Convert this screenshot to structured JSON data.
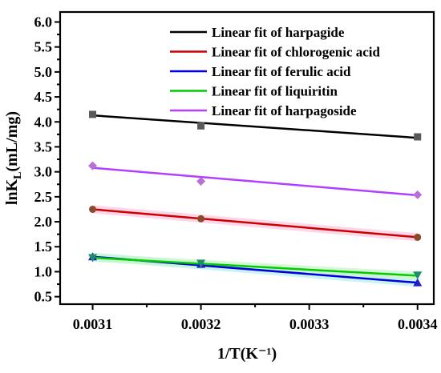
{
  "chart_data": {
    "type": "scatter",
    "title": "",
    "xlabel": "1/T(K⁻¹)",
    "ylabel_main": "lnK",
    "ylabel_sub": "L",
    "ylabel_unit": "(mL/mg)",
    "xlim": [
      0.00307,
      0.003415
    ],
    "ylim": [
      0.35,
      6.2
    ],
    "xticks": [
      0.0031,
      0.0032,
      0.0033,
      0.0034
    ],
    "xtick_labels": [
      "0.0031",
      "0.0032",
      "0.0033",
      "0.0034"
    ],
    "yticks": [
      0.5,
      1.0,
      1.5,
      2.0,
      2.5,
      3.0,
      3.5,
      4.0,
      4.5,
      5.0,
      5.5,
      6.0
    ],
    "ytick_labels": [
      "0.5",
      "1.0",
      "1.5",
      "2.0",
      "2.5",
      "3.0",
      "3.5",
      "4.0",
      "4.5",
      "5.0",
      "5.5",
      "6.0"
    ],
    "grid": false,
    "legend_position": "top-right",
    "x": [
      0.0031,
      0.0032,
      0.0034
    ],
    "series": [
      {
        "name": "Linear fit of harpagide",
        "color": "#000000",
        "marker_color": "#595959",
        "marker": "square",
        "points": [
          4.15,
          3.92,
          3.7
        ],
        "fit": [
          4.13,
          3.68
        ],
        "band": ""
      },
      {
        "name": "Linear fit of chlorogenic acid",
        "color": "#cc0000",
        "marker_color": "#8b4a2b",
        "marker": "circle",
        "points": [
          2.25,
          2.06,
          1.69
        ],
        "fit": [
          2.25,
          1.69
        ],
        "band": "#ffc8e0"
      },
      {
        "name": "Linear fit of ferulic acid",
        "color": "#0000dd",
        "marker_color": "#1f1fc8",
        "marker": "triangle-up",
        "points": [
          1.3,
          1.15,
          0.78
        ],
        "fit": [
          1.3,
          0.78
        ],
        "band": "#b8f0f0"
      },
      {
        "name": "Linear fit of liquiritin",
        "color": "#00cc00",
        "marker_color": "#1f8c6a",
        "marker": "triangle-down",
        "points": [
          1.28,
          1.17,
          0.93
        ],
        "fit": [
          1.28,
          0.92
        ],
        "band": "#c8f5c8"
      },
      {
        "name": "Linear fit of harpagoside",
        "color": "#b440ff",
        "marker_color": "#b86fd6",
        "marker": "diamond",
        "points": [
          3.12,
          2.81,
          2.54
        ],
        "fit": [
          3.08,
          2.53
        ],
        "band": ""
      }
    ]
  }
}
